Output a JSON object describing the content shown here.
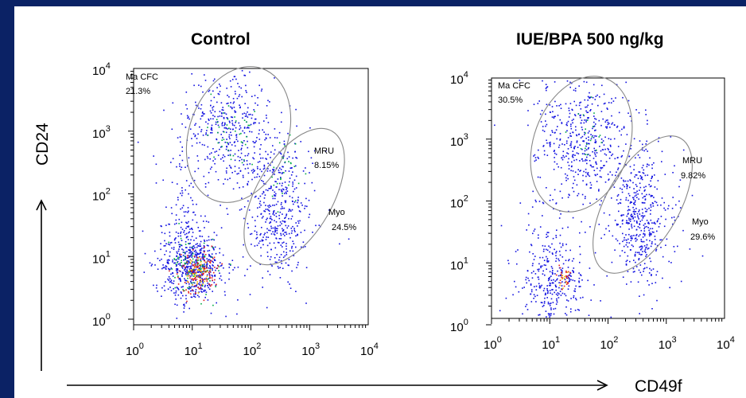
{
  "chart_data": [
    {
      "type": "scatter",
      "title": "Control",
      "xlabel": "CD49f",
      "ylabel": "CD24",
      "xscale": "log",
      "yscale": "log",
      "xlim": [
        1,
        10000
      ],
      "ylim": [
        1,
        10000
      ],
      "x_ticks": [
        "10^0",
        "10^1",
        "10^2",
        "10^3",
        "10^4"
      ],
      "y_ticks": [
        "10^0",
        "10^1",
        "10^2",
        "10^3",
        "10^4"
      ],
      "gates": [
        {
          "name": "Ma CFC",
          "percent": "21.3%"
        },
        {
          "name": "MRU",
          "percent": "8.15%"
        },
        {
          "name": "Myo",
          "percent": "24.5%"
        }
      ]
    },
    {
      "type": "scatter",
      "title": "IUE/BPA 500 ng/kg",
      "xlabel": "CD49f",
      "ylabel": "CD24",
      "xscale": "log",
      "yscale": "log",
      "xlim": [
        1,
        10000
      ],
      "ylim": [
        1,
        10000
      ],
      "x_ticks": [
        "10^0",
        "10^1",
        "10^2",
        "10^3",
        "10^4"
      ],
      "y_ticks": [
        "10^0",
        "10^1",
        "10^2",
        "10^3",
        "10^4"
      ],
      "gates": [
        {
          "name": "Ma CFC",
          "percent": "30.5%"
        },
        {
          "name": "MRU",
          "percent": "9.82%"
        },
        {
          "name": "Myo",
          "percent": "29.6%"
        }
      ]
    }
  ],
  "axis_titles": {
    "y": "CD24",
    "x": "CD49f"
  },
  "colors": {
    "background": "#0b2265",
    "panel": "#ffffff",
    "dots": "#1010e0",
    "dense": "#00aa44",
    "hot": "#e02020",
    "gate": "#888888"
  }
}
